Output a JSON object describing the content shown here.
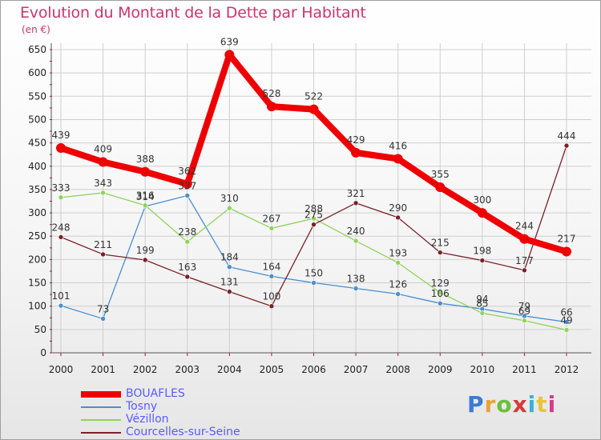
{
  "header": {
    "title": "Evolution du Montant de la Dette par Habitant",
    "unit": "(en €)"
  },
  "logo": {
    "text": "Proxiti"
  },
  "colors": {
    "title": "#c8366a",
    "legend_text": "#5a5aff",
    "grid": "#cfcfcf",
    "axis_marker": "#d0003a"
  },
  "chart_data": {
    "type": "line",
    "x": [
      "2000",
      "2001",
      "2002",
      "2003",
      "2004",
      "2005",
      "2006",
      "2007",
      "2008",
      "2009",
      "2010",
      "2011",
      "2012"
    ],
    "ylim": [
      0,
      650
    ],
    "yticks": [
      0,
      50,
      100,
      150,
      200,
      250,
      300,
      350,
      400,
      450,
      500,
      550,
      600,
      650
    ],
    "grid": true,
    "legend_position": "bottom-left",
    "series": [
      {
        "name": "BOUAFLES",
        "color": "#ee0000",
        "width": 8,
        "values": [
          439,
          409,
          388,
          362,
          639,
          528,
          522,
          429,
          416,
          355,
          300,
          244,
          217
        ]
      },
      {
        "name": "Tosny",
        "color": "#4a8fd0",
        "width": 1.3,
        "values": [
          101,
          73,
          314,
          337,
          184,
          164,
          150,
          138,
          126,
          106,
          94,
          79,
          66
        ]
      },
      {
        "name": "Vézillon",
        "color": "#8fd35a",
        "width": 1.3,
        "values": [
          333,
          343,
          316,
          238,
          310,
          267,
          288,
          240,
          193,
          129,
          85,
          69,
          49
        ]
      },
      {
        "name": "Courcelles-sur-Seine",
        "color": "#7a2128",
        "width": 1.3,
        "values": [
          248,
          211,
          199,
          163,
          131,
          100,
          275,
          321,
          290,
          215,
          198,
          177,
          444
        ]
      }
    ]
  }
}
